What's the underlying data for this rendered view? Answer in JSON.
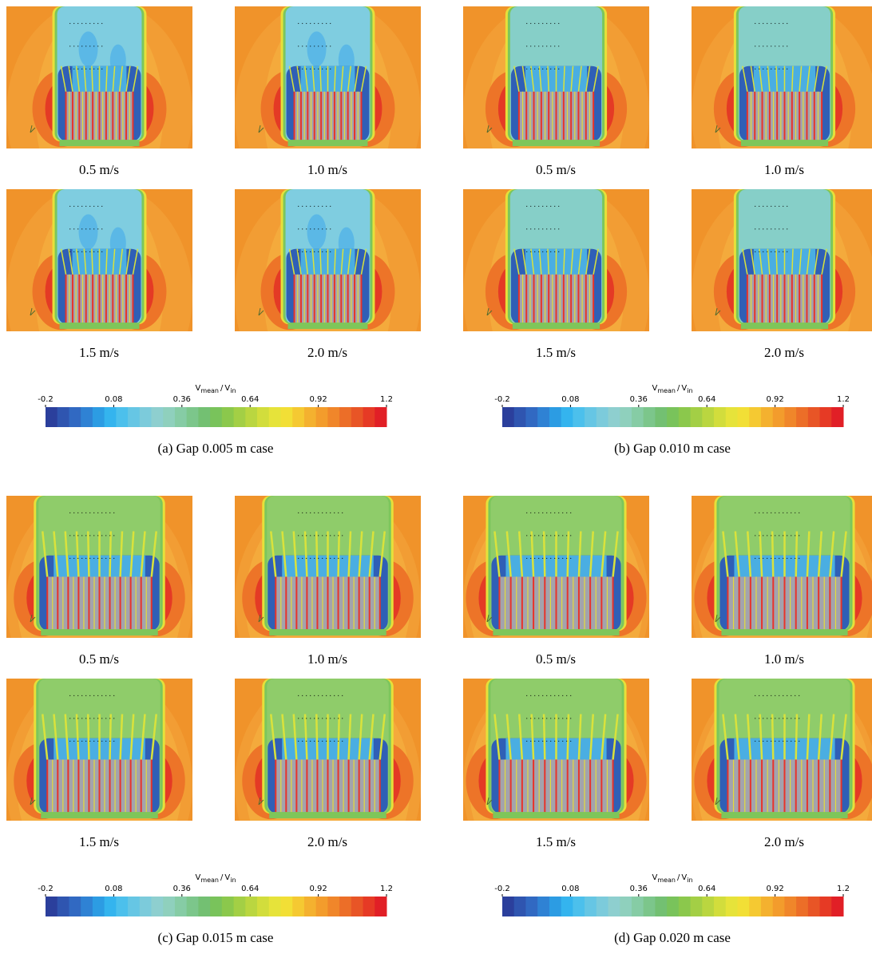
{
  "panels": [
    {
      "caption": "(a) Gap 0.005 m case",
      "plots": [
        "0.5 m/s",
        "1.0 m/s",
        "1.5 m/s",
        "2.0 m/s"
      ],
      "colorbar": {
        "numerator": "V",
        "numerator_sub": "mean",
        "separator": "/",
        "denominator": "V",
        "denominator_sub": "in",
        "ticks": [
          -0.2,
          0.08,
          0.36,
          0.64,
          0.92,
          1.2
        ]
      }
    },
    {
      "caption": "(b) Gap 0.010 m case",
      "plots": [
        "0.5 m/s",
        "1.0 m/s",
        "1.5 m/s",
        "2.0 m/s"
      ],
      "colorbar": {
        "numerator": "V",
        "numerator_sub": "mean",
        "separator": "/",
        "denominator": "V",
        "denominator_sub": "in",
        "ticks": [
          -0.2,
          0.08,
          0.36,
          0.64,
          0.92,
          1.2
        ]
      }
    },
    {
      "caption": "(c) Gap 0.015 m case",
      "plots": [
        "0.5 m/s",
        "1.0 m/s",
        "1.5 m/s",
        "2.0 m/s"
      ],
      "colorbar": {
        "numerator": "V",
        "numerator_sub": "mean",
        "separator": "/",
        "denominator": "V",
        "denominator_sub": "in",
        "ticks": [
          -0.2,
          0.08,
          0.36,
          0.64,
          0.92,
          1.2
        ]
      }
    },
    {
      "caption": "(d) Gap 0.020 m case",
      "plots": [
        "0.5 m/s",
        "1.0 m/s",
        "1.5 m/s",
        "2.0 m/s"
      ],
      "colorbar": {
        "numerator": "V",
        "numerator_sub": "mean",
        "separator": "/",
        "denominator": "V",
        "denominator_sub": "in",
        "ticks": [
          -0.2,
          0.08,
          0.36,
          0.64,
          0.92,
          1.2
        ]
      }
    }
  ]
}
